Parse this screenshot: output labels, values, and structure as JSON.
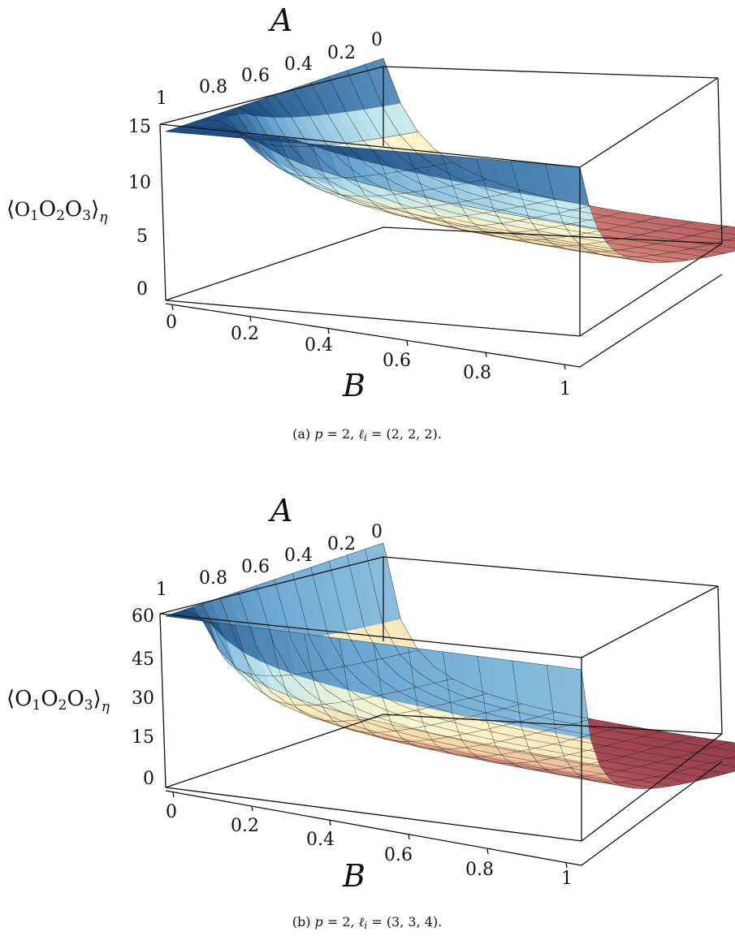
{
  "chart_data": [
    {
      "type": "surface3d",
      "xlabel": "B",
      "ylabel": "A",
      "zlabel_parts": [
        "⟨",
        "O",
        "1",
        "O",
        "2",
        "O",
        "3",
        "⟩",
        "η"
      ],
      "xticks": [
        "0",
        "0.2",
        "0.4",
        "0.6",
        "0.8",
        "1"
      ],
      "yticks": [
        "0",
        "0.2",
        "0.4",
        "0.6",
        "0.8",
        "1"
      ],
      "zticks": [
        "0",
        "5",
        "10",
        "15"
      ],
      "zlim": [
        0,
        15
      ],
      "corner_values": {
        "A0_B0": 15.4,
        "A1_B0": 15,
        "A0_B1": 15.4,
        "A1_B1": 0.5
      },
      "caption_parts": [
        "(a) ",
        "p",
        " = 2, ",
        "ℓ",
        "i",
        " = (2, 2, 2)."
      ],
      "colormap": [
        "#6d2236",
        "#a84a55",
        "#dc8d7e",
        "#f6d9a9",
        "#fdf6cc",
        "#bfe7f0",
        "#6ea8d2",
        "#1e4f85"
      ]
    },
    {
      "type": "surface3d",
      "xlabel": "B",
      "ylabel": "A",
      "zlabel_parts": [
        "⟨",
        "O",
        "1",
        "O",
        "2",
        "O",
        "3",
        "⟩",
        "η"
      ],
      "xticks": [
        "0",
        "0.2",
        "0.4",
        "0.6",
        "0.8",
        "1"
      ],
      "yticks": [
        "0",
        "0.2",
        "0.4",
        "0.6",
        "0.8",
        "1"
      ],
      "zticks": [
        "0",
        "15",
        "30",
        "45",
        "60"
      ],
      "zlim": [
        0,
        60
      ],
      "corner_values": {
        "A0_B0": 61,
        "A1_B0": 60,
        "A0_B1": 61,
        "A1_B1": 1
      },
      "caption_parts": [
        "(b) ",
        "p",
        " = 2, ",
        "ℓ",
        "i",
        " = (3, 3, 4)."
      ],
      "colormap": [
        "#6d2236",
        "#a84a55",
        "#dc8d7e",
        "#f6d9a9",
        "#fdf6cc",
        "#bfe7f0",
        "#6ea8d2",
        "#1e4f85"
      ]
    }
  ]
}
